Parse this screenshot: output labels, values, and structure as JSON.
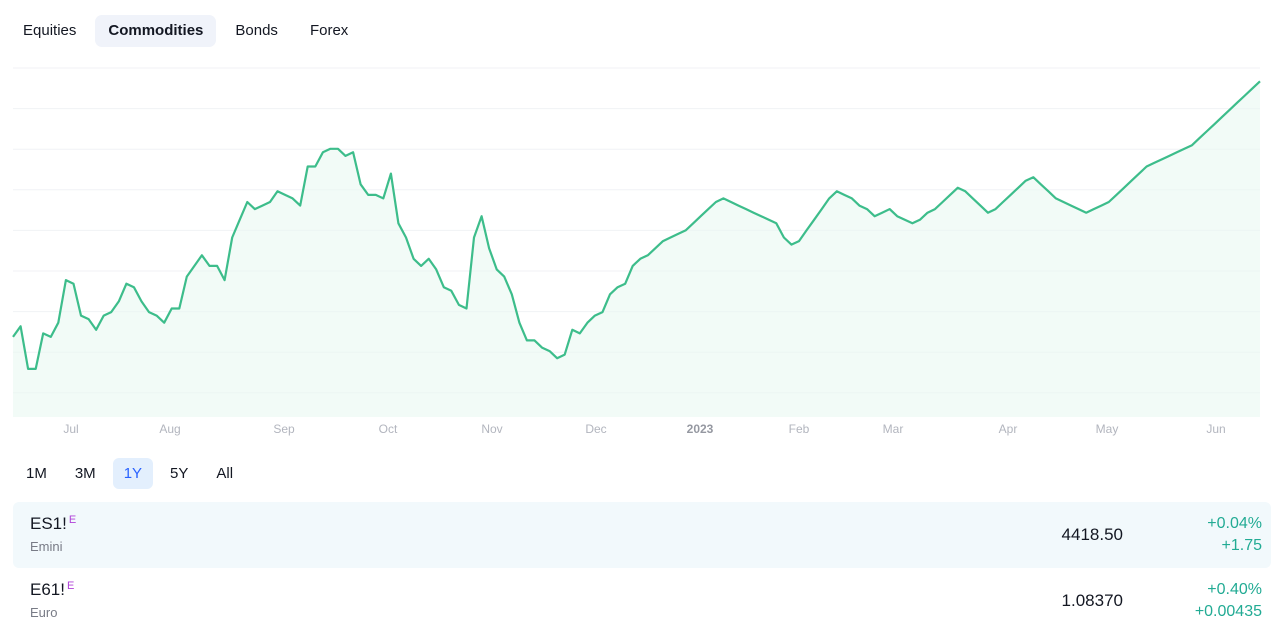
{
  "tabs": [
    {
      "label": "Equities",
      "active": false
    },
    {
      "label": "Commodities",
      "active": true
    },
    {
      "label": "Bonds",
      "active": false
    },
    {
      "label": "Forex",
      "active": false
    }
  ],
  "chart_data": {
    "type": "area",
    "line_color": "#3dbd8b",
    "fill_color": "#eaf8f1",
    "grid": true,
    "x_tick_labels": [
      "Jul",
      "Aug",
      "Sep",
      "Oct",
      "Nov",
      "Dec",
      "2023",
      "Feb",
      "Mar",
      "Apr",
      "May",
      "Jun"
    ],
    "ylim": [
      0,
      100
    ],
    "values": [
      22,
      25,
      13,
      13,
      23,
      22,
      26,
      38,
      37,
      28,
      27,
      24,
      28,
      29,
      32,
      37,
      36,
      32,
      29,
      28,
      26,
      30,
      30,
      39,
      42,
      45,
      42,
      42,
      38,
      50,
      55,
      60,
      58,
      59,
      60,
      63,
      62,
      61,
      59,
      70,
      70,
      74,
      75,
      75,
      73,
      74,
      65,
      62,
      62,
      61,
      68,
      54,
      50,
      44,
      42,
      44,
      41,
      36,
      35,
      31,
      30,
      50,
      56,
      47,
      41,
      39,
      34,
      26,
      21,
      21,
      19,
      18,
      16,
      17,
      24,
      23,
      26,
      28,
      29,
      34,
      36,
      37,
      42,
      44,
      45,
      47,
      49,
      50,
      51,
      52,
      54,
      56,
      58,
      60,
      61,
      60,
      59,
      58,
      57,
      56,
      55,
      54,
      50,
      48,
      49,
      52,
      55,
      58,
      61,
      63,
      62,
      61,
      59,
      58,
      56,
      57,
      58,
      56,
      55,
      54,
      55,
      57,
      58,
      60,
      62,
      64,
      63,
      61,
      59,
      57,
      58,
      60,
      62,
      64,
      66,
      67,
      65,
      63,
      61,
      60,
      59,
      58,
      57,
      58,
      59,
      60,
      62,
      64,
      66,
      68,
      70,
      71,
      72,
      73,
      74,
      75,
      76,
      78,
      80,
      82,
      84,
      86,
      88,
      90,
      92,
      94
    ]
  },
  "ranges": [
    {
      "label": "1M",
      "active": false
    },
    {
      "label": "3M",
      "active": false
    },
    {
      "label": "1Y",
      "active": true
    },
    {
      "label": "5Y",
      "active": false
    },
    {
      "label": "All",
      "active": false
    }
  ],
  "rows": [
    {
      "symbol": "ES1!",
      "badge": "E",
      "desc": "Emini",
      "price": "4418.50",
      "change_pct": "+0.04%",
      "change_abs": "+1.75",
      "highlight": true
    },
    {
      "symbol": "E61!",
      "badge": "E",
      "desc": "Euro",
      "price": "1.08370",
      "change_pct": "+0.40%",
      "change_abs": "+0.00435",
      "highlight": false
    }
  ]
}
